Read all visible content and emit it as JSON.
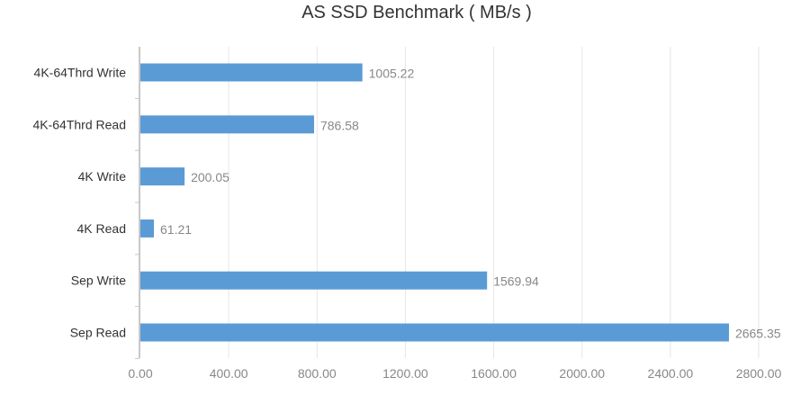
{
  "chart_data": {
    "type": "bar",
    "orientation": "horizontal",
    "title": "AS SSD Benchmark ( MB/s )",
    "xlabel": "",
    "ylabel": "",
    "categories": [
      "4K-64Thrd Write",
      "4K-64Thrd Read",
      "4K Write",
      "4K Read",
      "Sep Write",
      "Sep Read"
    ],
    "values": [
      1005.22,
      786.58,
      200.05,
      61.21,
      1569.94,
      2665.35
    ],
    "value_labels": [
      "1005.22",
      "786.58",
      "200.05",
      "61.21",
      "1569.94",
      "2665.35"
    ],
    "xlim": [
      0,
      2800
    ],
    "ticks": [
      0,
      400,
      800,
      1200,
      1600,
      2000,
      2400,
      2800
    ],
    "tick_labels": [
      "0.00",
      "400.00",
      "800.00",
      "1200.00",
      "1600.00",
      "2000.00",
      "2400.00",
      "2800.00"
    ],
    "grid": true,
    "legend": "none",
    "colors": {
      "bar": "#5b9bd5",
      "grid": "#e6e6e6",
      "axis": "#c8c8c8"
    }
  }
}
